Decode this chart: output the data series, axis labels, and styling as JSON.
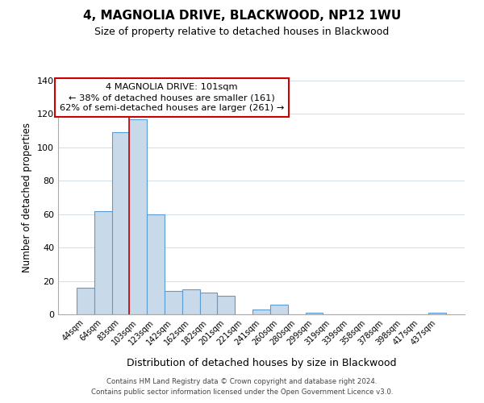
{
  "title": "4, MAGNOLIA DRIVE, BLACKWOOD, NP12 1WU",
  "subtitle": "Size of property relative to detached houses in Blackwood",
  "xlabel": "Distribution of detached houses by size in Blackwood",
  "ylabel": "Number of detached properties",
  "footer_line1": "Contains HM Land Registry data © Crown copyright and database right 2024.",
  "footer_line2": "Contains public sector information licensed under the Open Government Licence v3.0.",
  "bin_labels": [
    "44sqm",
    "64sqm",
    "83sqm",
    "103sqm",
    "123sqm",
    "142sqm",
    "162sqm",
    "182sqm",
    "201sqm",
    "221sqm",
    "241sqm",
    "260sqm",
    "280sqm",
    "299sqm",
    "319sqm",
    "339sqm",
    "358sqm",
    "378sqm",
    "398sqm",
    "417sqm",
    "437sqm"
  ],
  "bar_heights": [
    16,
    62,
    109,
    117,
    60,
    14,
    15,
    13,
    11,
    0,
    3,
    6,
    0,
    1,
    0,
    0,
    0,
    0,
    0,
    0,
    1
  ],
  "bar_color": "#c8daea",
  "bar_edge_color": "#5b9bd5",
  "highlight_line_color": "#cc0000",
  "red_line_x": 2.5,
  "ylim": [
    0,
    140
  ],
  "yticks": [
    0,
    20,
    40,
    60,
    80,
    100,
    120,
    140
  ],
  "annotation_title": "4 MAGNOLIA DRIVE: 101sqm",
  "annotation_line1": "← 38% of detached houses are smaller (161)",
  "annotation_line2": "62% of semi-detached houses are larger (261) →",
  "background_color": "#ffffff",
  "grid_color": "#d0dce8"
}
